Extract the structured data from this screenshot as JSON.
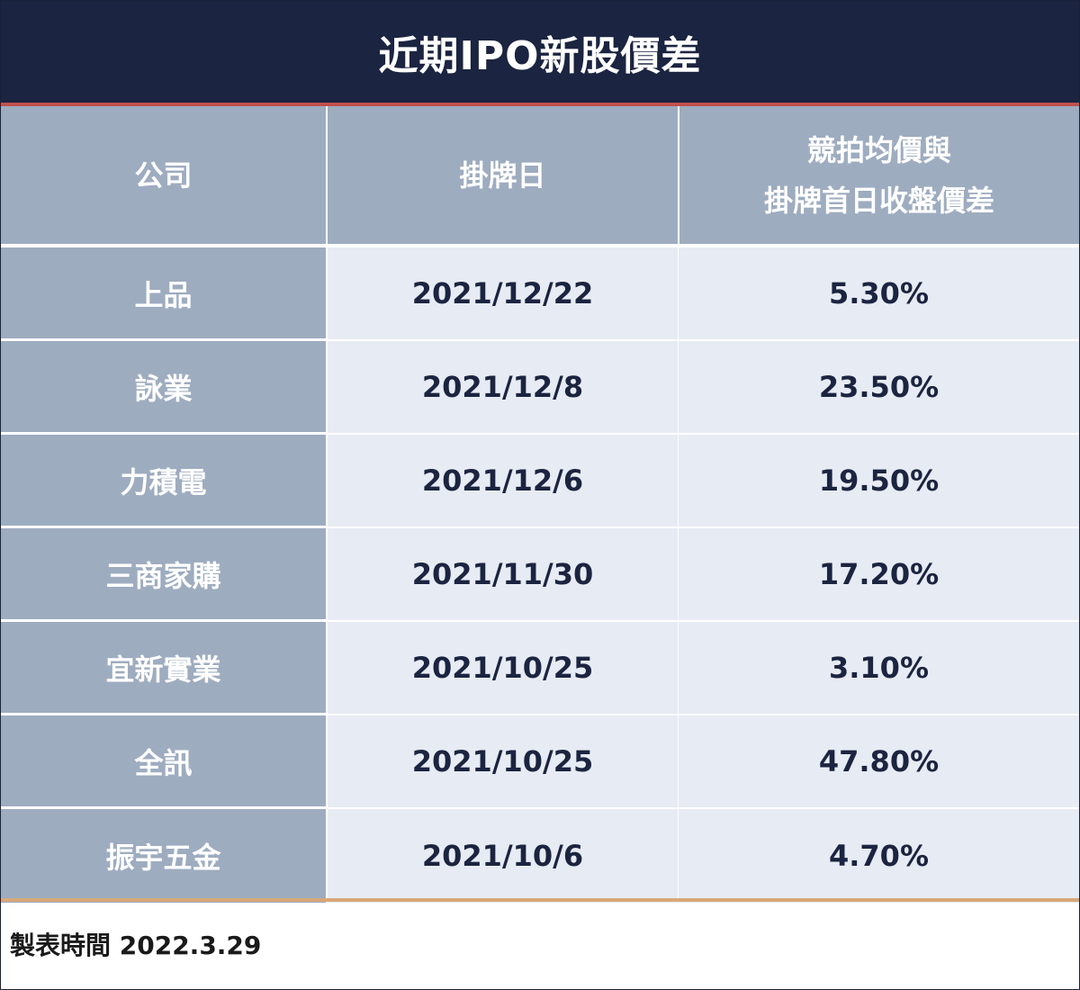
{
  "title": "近期IPO新股價差",
  "colors": {
    "title_bg": "#1b2440",
    "title_accent_line": "#c0504d",
    "header_bg": "#9eacc0",
    "company_col_bg": "#9eacc0",
    "data_cell_bg": "#e7ebf3",
    "data_text": "#1b2440",
    "bottom_accent_line": "#d8a878"
  },
  "chart_data": {
    "type": "table",
    "title": "近期IPO新股價差",
    "columns": [
      "公司",
      "掛牌日",
      "競拍均價與掛牌首日收盤價差"
    ],
    "columns_display": [
      [
        "公司"
      ],
      [
        "掛牌日"
      ],
      [
        "競拍均價與",
        "掛牌首日收盤價差"
      ]
    ],
    "rows": [
      {
        "company": "上品",
        "listing_date": "2021/12/22",
        "spread": "5.30%"
      },
      {
        "company": "詠業",
        "listing_date": "2021/12/8",
        "spread": "23.50%"
      },
      {
        "company": "力積電",
        "listing_date": "2021/12/6",
        "spread": "19.50%"
      },
      {
        "company": "三商家購",
        "listing_date": "2021/11/30",
        "spread": "17.20%"
      },
      {
        "company": "宜新實業",
        "listing_date": "2021/10/25",
        "spread": "3.10%"
      },
      {
        "company": "全訊",
        "listing_date": "2021/10/25",
        "spread": "47.80%"
      },
      {
        "company": "振宇五金",
        "listing_date": "2021/10/6",
        "spread": "4.70%"
      }
    ]
  },
  "footer": {
    "note": "製表時間 2022.3.29"
  }
}
